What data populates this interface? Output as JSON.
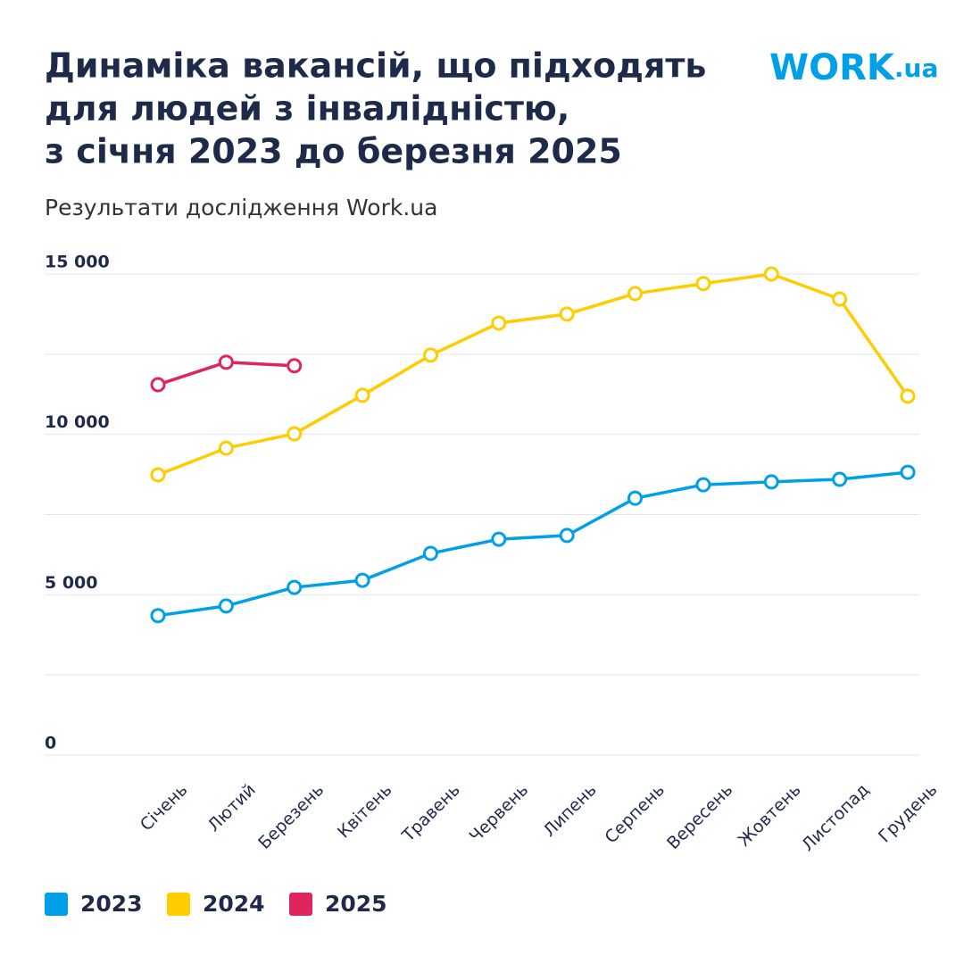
{
  "chart_data": {
    "type": "line",
    "title": [
      "Динаміка вакансій, що підходять",
      "для людей з інвалідністю,",
      "з січня 2023 до березня 2025"
    ],
    "subtitle": "Результати дослідження Work.ua",
    "logo": {
      "main": "WORK",
      "suffix": ".ua"
    },
    "categories": [
      "Січень",
      "Лютий",
      "Березень",
      "Квітень",
      "Травень",
      "Червень",
      "Липень",
      "Серпень",
      "Вересень",
      "Жовтень",
      "Листопад",
      "Грудень"
    ],
    "series": [
      {
        "name": "2023",
        "color": "#00a0e8",
        "values": [
          4350,
          4650,
          5230,
          5450,
          6290,
          6730,
          6850,
          8010,
          8430,
          8520,
          8600,
          8820
        ]
      },
      {
        "name": "2024",
        "color": "#ffcc00",
        "values": [
          8740,
          9570,
          10020,
          11220,
          12470,
          13470,
          13750,
          14390,
          14700,
          15000,
          14220,
          11190
        ]
      },
      {
        "name": "2025",
        "color": "#e0245e",
        "values": [
          11550,
          12250,
          12140,
          null,
          null,
          null,
          null,
          null,
          null,
          null,
          null,
          null
        ]
      }
    ],
    "ylim": [
      0,
      15000
    ],
    "yticks": [
      0,
      {
        "value": 5000,
        "label": "5 000"
      },
      {
        "value": 10000,
        "label": "10 000"
      },
      {
        "value": 15000,
        "label": "15 000"
      }
    ],
    "minor_yticks": [
      2500,
      7500,
      12500
    ],
    "grid": true,
    "legend": "bottom-left"
  }
}
